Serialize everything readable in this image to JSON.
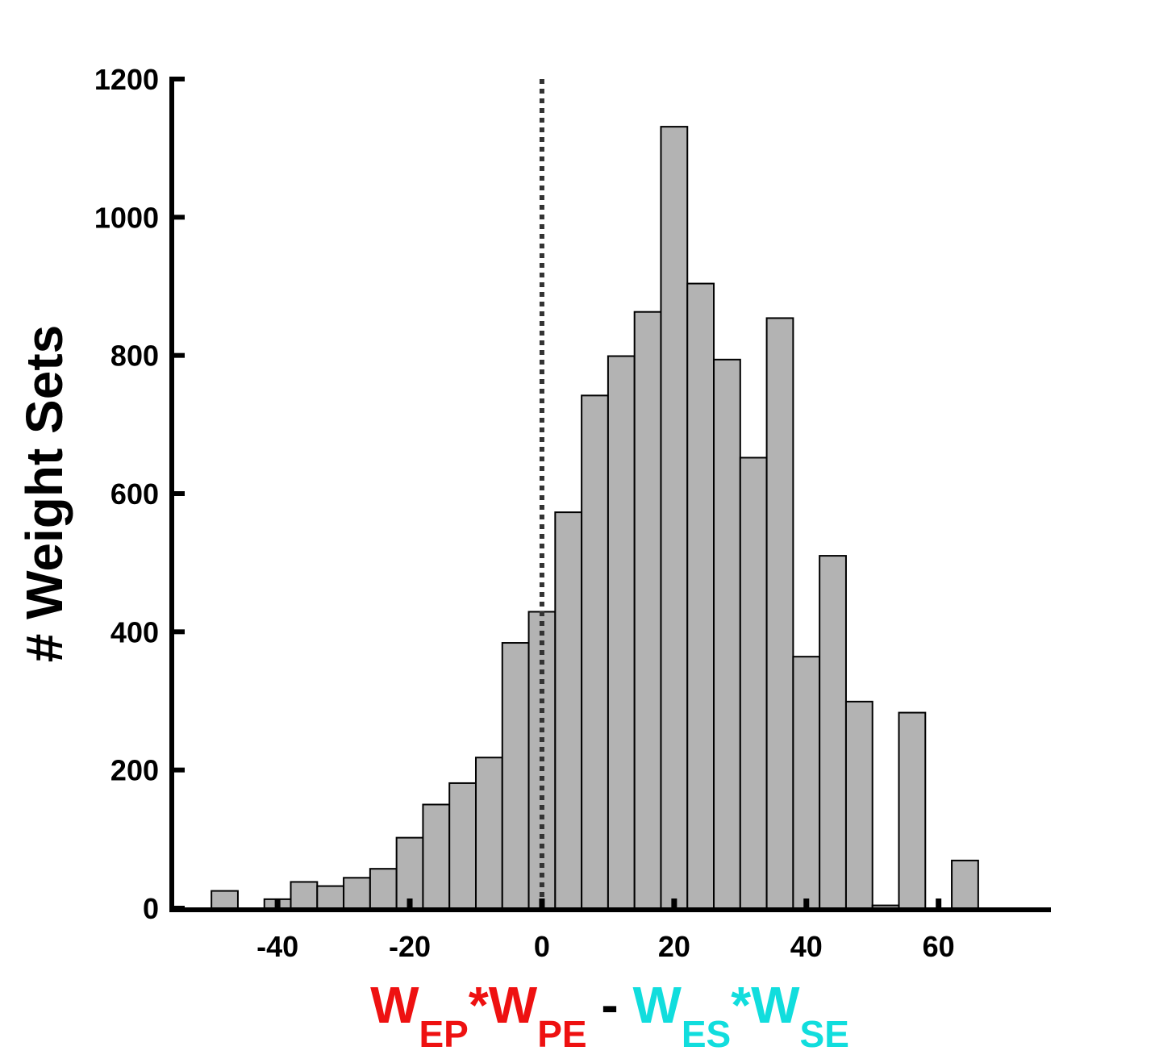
{
  "chart_data": {
    "type": "bar",
    "subtype": "histogram",
    "title": "",
    "ylabel": "# Weight Sets",
    "xlabel_parts": [
      {
        "text": "W",
        "color": "#ee1111",
        "sub": false
      },
      {
        "text": "EP",
        "color": "#ee1111",
        "sub": true
      },
      {
        "text": "*W",
        "color": "#ee1111",
        "sub": false
      },
      {
        "text": "PE",
        "color": "#ee1111",
        "sub": true
      },
      {
        "text": " - ",
        "color": "#000000",
        "sub": false
      },
      {
        "text": "W",
        "color": "#11dddd",
        "sub": false
      },
      {
        "text": "ES",
        "color": "#11dddd",
        "sub": true
      },
      {
        "text": "*W",
        "color": "#11dddd",
        "sub": false
      },
      {
        "text": "SE",
        "color": "#11dddd",
        "sub": true
      }
    ],
    "xlim": [
      -56,
      77
    ],
    "ylim": [
      0,
      1200
    ],
    "xticks": [
      -40,
      -20,
      0,
      20,
      40,
      60
    ],
    "yticks": [
      0,
      200,
      400,
      600,
      800,
      1000,
      1200
    ],
    "bin_width": 4,
    "bin_starts": [
      -50,
      -42,
      -38,
      -34,
      -30,
      -26,
      -22,
      -18,
      -14,
      -10,
      -6,
      -2,
      2,
      6,
      10,
      14,
      18,
      22,
      26,
      30,
      34,
      38,
      42,
      46,
      50,
      54,
      62
    ],
    "values": [
      25,
      13,
      38,
      32,
      44,
      57,
      102,
      150,
      181,
      218,
      384,
      429,
      573,
      742,
      799,
      863,
      1131,
      904,
      794,
      652,
      854,
      364,
      510,
      299,
      4,
      283,
      69
    ],
    "reference_line": {
      "x": 0,
      "style": "dotted"
    },
    "bar_color": "#b3b3b3",
    "grid": false,
    "legend": "none"
  }
}
